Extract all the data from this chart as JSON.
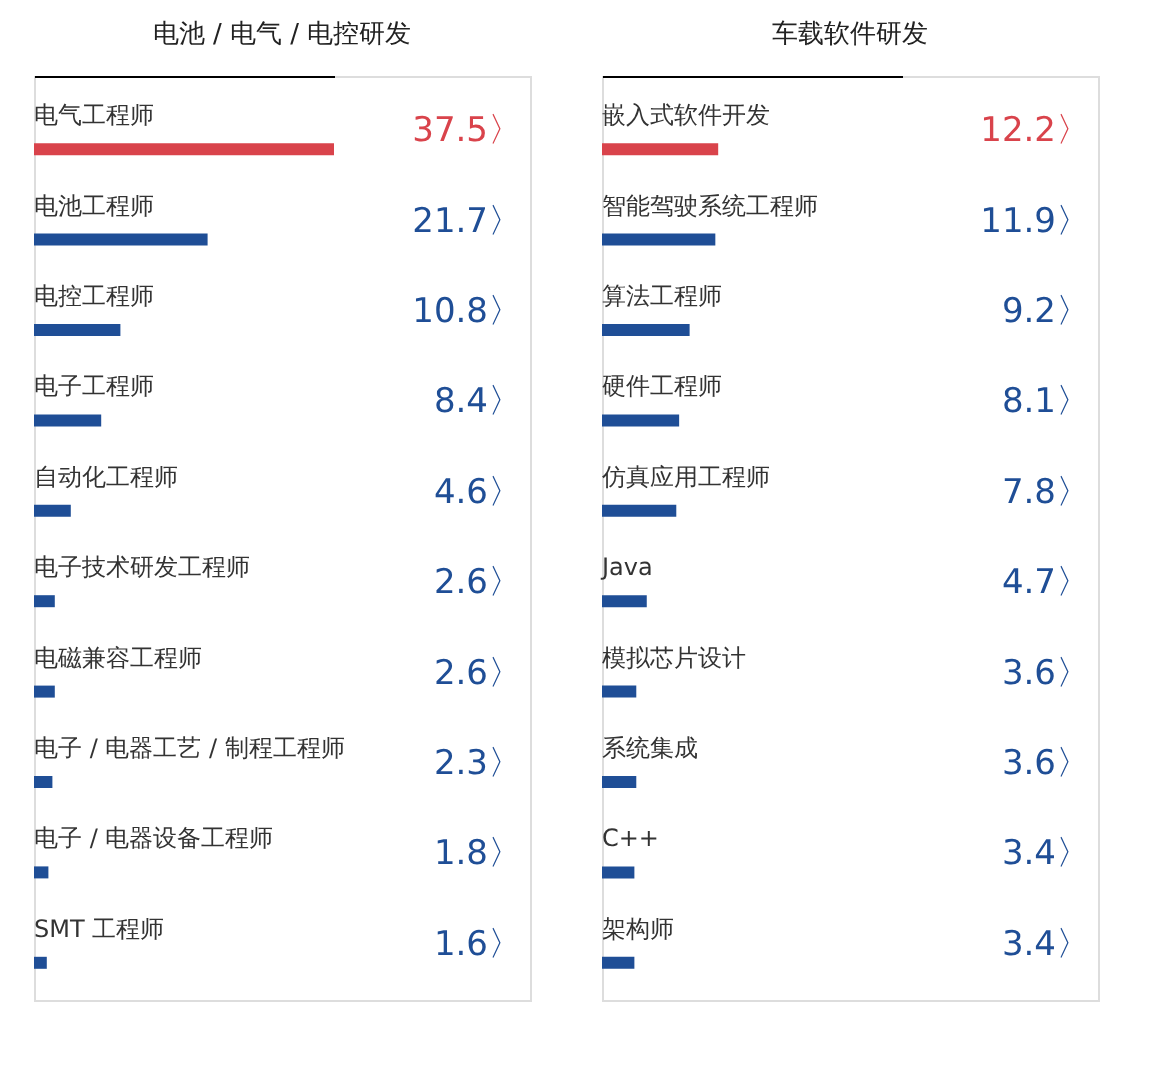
{
  "chart_data": [
    {
      "type": "bar",
      "orientation": "horizontal",
      "title": "电池 / 电气 / 电控研发",
      "categories": [
        "电气工程师",
        "电池工程师",
        "电控工程师",
        "电子工程师",
        "自动化工程师",
        "电子技术研发工程师",
        "电磁兼容工程师",
        "电子 / 电器工艺 / 制程工程师",
        "电子 / 电器设备工程师",
        "SMT 工程师"
      ],
      "values": [
        37.5,
        21.7,
        10.8,
        8.4,
        4.6,
        2.6,
        2.6,
        2.3,
        1.8,
        1.6
      ],
      "colors": [
        "#d9434b",
        "#1f4e96",
        "#1f4e96",
        "#1f4e96",
        "#1f4e96",
        "#1f4e96",
        "#1f4e96",
        "#1f4e96",
        "#1f4e96",
        "#1f4e96"
      ],
      "value_labels": [
        "37.5〉",
        "21.7〉",
        "10.8〉",
        "8.4〉",
        "4.6〉",
        "2.6〉",
        "2.6〉",
        "2.3〉",
        "1.8〉",
        "1.6〉"
      ],
      "xlim": [
        0,
        37.5
      ]
    },
    {
      "type": "bar",
      "orientation": "horizontal",
      "title": "车载软件研发",
      "categories": [
        "嵌入式软件开发",
        "智能驾驶系统工程师",
        "算法工程师",
        "硬件工程师",
        "仿真应用工程师",
        "Java",
        "模拟芯片设计",
        "系统集成",
        "C++",
        "架构师"
      ],
      "values": [
        12.2,
        11.9,
        9.2,
        8.1,
        7.8,
        4.7,
        3.6,
        3.6,
        3.4,
        3.4
      ],
      "colors": [
        "#d9434b",
        "#1f4e96",
        "#1f4e96",
        "#1f4e96",
        "#1f4e96",
        "#1f4e96",
        "#1f4e96",
        "#1f4e96",
        "#1f4e96",
        "#1f4e96"
      ],
      "value_labels": [
        "12.2〉",
        "11.9〉",
        "9.2〉",
        "8.1〉",
        "7.8〉",
        "4.7〉",
        "3.6〉",
        "3.6〉",
        "3.4〉",
        "3.4〉"
      ],
      "xlim": [
        0,
        31.5
      ]
    }
  ]
}
